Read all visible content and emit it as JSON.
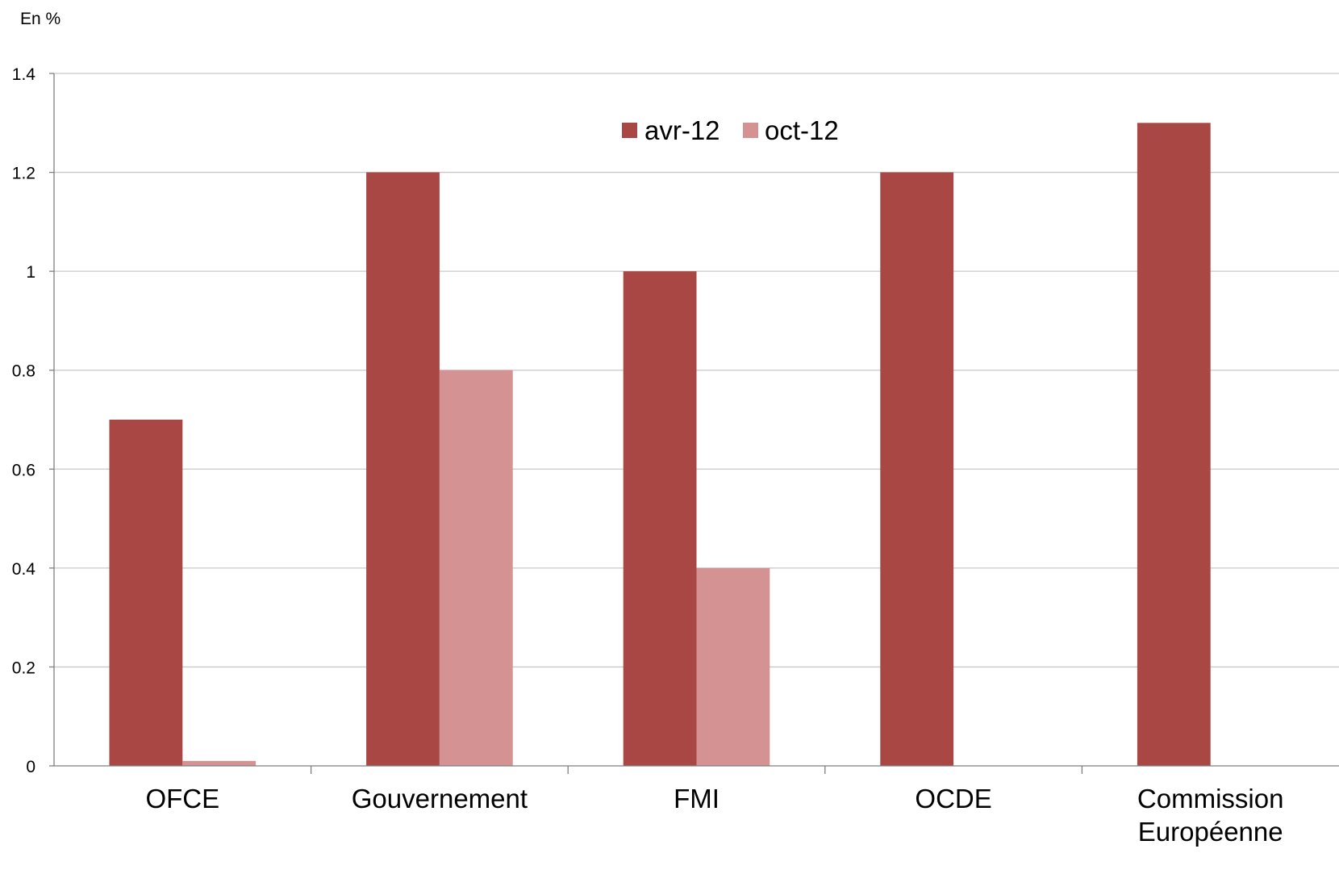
{
  "chart_data": {
    "type": "bar",
    "unit_label": "En %",
    "categories": [
      "OFCE",
      "Gouvernement",
      "FMI",
      "OCDE",
      "Commission Européenne"
    ],
    "series": [
      {
        "name": "avr-12",
        "color": "#A84744",
        "values": [
          0.7,
          1.2,
          1.0,
          1.2,
          1.3
        ]
      },
      {
        "name": "oct-12",
        "color": "#D49292",
        "values": [
          0.01,
          0.8,
          0.4,
          null,
          null
        ]
      }
    ],
    "ylim": [
      0,
      1.4
    ],
    "yticks": [
      "0",
      "0.2",
      "0.4",
      "0.6",
      "0.8",
      "1",
      "1.2",
      "1.4"
    ],
    "ytick_values": [
      0,
      0.2,
      0.4,
      0.6,
      0.8,
      1.0,
      1.2,
      1.4
    ],
    "grid": true,
    "legend_position": "top-center",
    "title": "",
    "xlabel": "",
    "ylabel": ""
  }
}
